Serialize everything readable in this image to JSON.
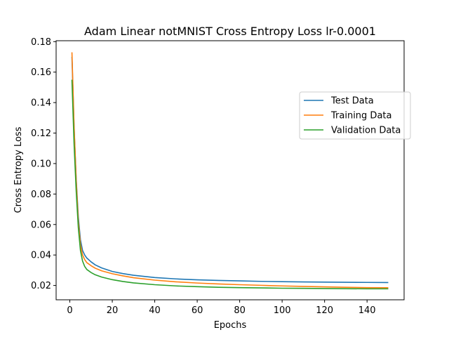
{
  "chart_data": {
    "type": "line",
    "title": "Adam Linear notMNIST Cross Entropy Loss lr-0.0001",
    "xlabel": "Epochs",
    "ylabel": "Cross Entropy Loss",
    "xlim": [
      -6.45,
      157.45
    ],
    "ylim": [
      0.0106,
      0.1806
    ],
    "xticks": [
      0,
      20,
      40,
      60,
      80,
      100,
      120,
      140
    ],
    "yticks": [
      0.02,
      0.04,
      0.06,
      0.08,
      0.1,
      0.12,
      0.14,
      0.16,
      0.18
    ],
    "ytick_labels": [
      "0.02",
      "0.04",
      "0.06",
      "0.08",
      "0.10",
      "0.12",
      "0.14",
      "0.16",
      "0.18"
    ],
    "grid": false,
    "legend": "upper-right",
    "x": [
      1,
      2,
      3,
      4,
      5,
      6,
      7,
      8,
      10,
      12,
      15,
      20,
      25,
      30,
      40,
      50,
      60,
      70,
      80,
      90,
      100,
      110,
      120,
      130,
      140,
      150
    ],
    "series": [
      {
        "name": "Test Data",
        "color": "#1f77b4",
        "values": [
          0.17,
          0.124,
          0.09,
          0.065,
          0.05,
          0.043,
          0.04,
          0.038,
          0.0355,
          0.0335,
          0.0315,
          0.0292,
          0.0278,
          0.0267,
          0.0252,
          0.0243,
          0.0237,
          0.0233,
          0.023,
          0.0227,
          0.0225,
          0.0223,
          0.0222,
          0.0221,
          0.022,
          0.0219
        ]
      },
      {
        "name": "Training Data",
        "color": "#ff7f0e",
        "values": [
          0.173,
          0.125,
          0.089,
          0.062,
          0.047,
          0.04,
          0.037,
          0.035,
          0.033,
          0.0313,
          0.0296,
          0.0277,
          0.0263,
          0.0251,
          0.0235,
          0.0224,
          0.0216,
          0.021,
          0.0205,
          0.0201,
          0.0197,
          0.0194,
          0.0191,
          0.0188,
          0.0186,
          0.0185
        ]
      },
      {
        "name": "Validation Data",
        "color": "#2ca02c",
        "values": [
          0.155,
          0.113,
          0.082,
          0.058,
          0.043,
          0.036,
          0.0325,
          0.0305,
          0.0285,
          0.027,
          0.0255,
          0.0238,
          0.0226,
          0.0217,
          0.0205,
          0.0197,
          0.0192,
          0.0188,
          0.0186,
          0.0184,
          0.0182,
          0.0181,
          0.018,
          0.0179,
          0.0178,
          0.0178
        ]
      }
    ]
  }
}
